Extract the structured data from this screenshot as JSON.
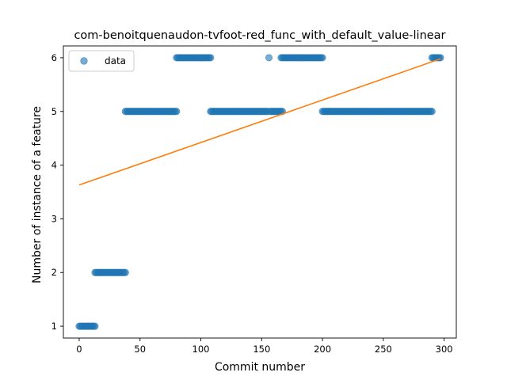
{
  "chart_data": {
    "type": "scatter",
    "title": "com-benoitquenaudon-tvfoot-red_func_with_default_value-linear",
    "xlabel": "Commit number",
    "ylabel": "Number of instance of a feature",
    "xlim": [
      -13,
      310
    ],
    "ylim": [
      0.78,
      6.22
    ],
    "xticks": [
      0,
      50,
      100,
      150,
      200,
      250,
      300
    ],
    "yticks": [
      1,
      2,
      3,
      4,
      5,
      6
    ],
    "grid": false,
    "legend": {
      "placement": "top-left",
      "entries": [
        "data"
      ]
    },
    "series": [
      {
        "name": "data",
        "kind": "scatter",
        "color": "#1f77b4",
        "segments": [
          {
            "x_start": 0,
            "x_end": 13,
            "y": 1
          },
          {
            "x_start": 13,
            "x_end": 38,
            "y": 2
          },
          {
            "x_start": 38,
            "x_end": 80,
            "y": 5
          },
          {
            "x_start": 80,
            "x_end": 108,
            "y": 6
          },
          {
            "x_start": 108,
            "x_end": 155,
            "y": 5
          },
          {
            "x_start": 156,
            "x_end": 156,
            "y": 6
          },
          {
            "x_start": 157,
            "x_end": 167,
            "y": 5
          },
          {
            "x_start": 166,
            "x_end": 200,
            "y": 6
          },
          {
            "x_start": 200,
            "x_end": 290,
            "y": 5
          },
          {
            "x_start": 290,
            "x_end": 297,
            "y": 6
          }
        ]
      },
      {
        "kind": "line",
        "color": "#ff7f0e",
        "x": [
          0,
          297
        ],
        "y": [
          3.63,
          5.98
        ]
      }
    ]
  }
}
